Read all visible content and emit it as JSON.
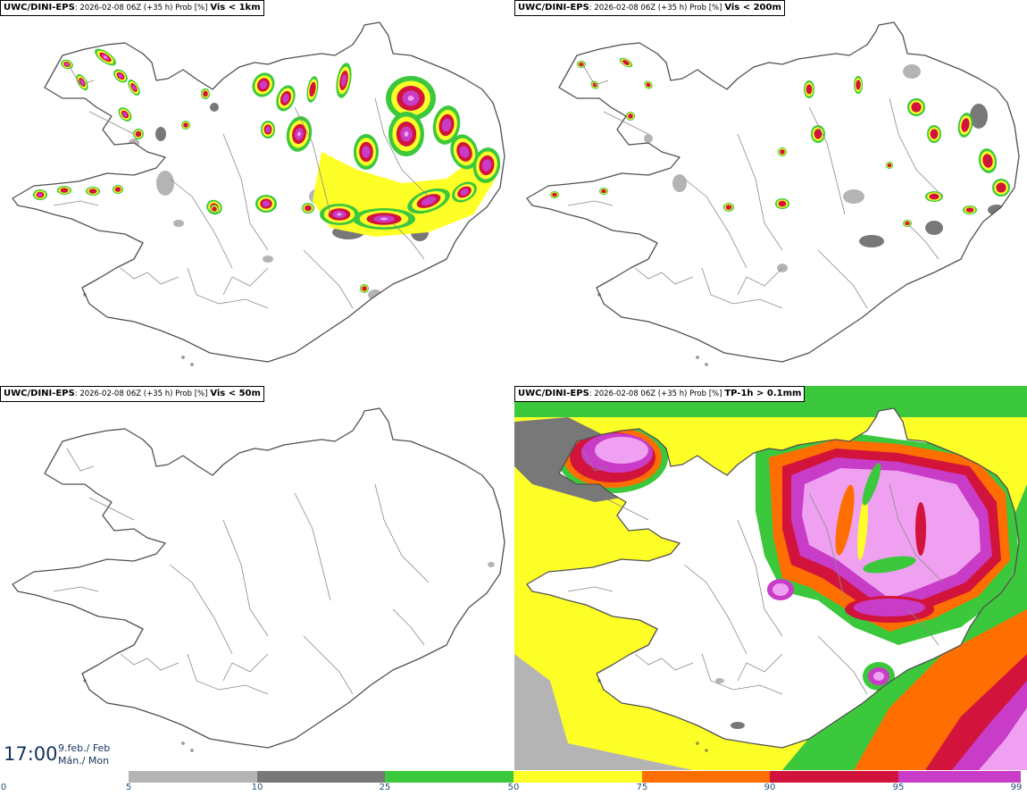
{
  "colors": {
    "light_gray": "#b4b4b4",
    "dark_gray": "#787878",
    "green": "#3cc83c",
    "yellow": "#ffff28",
    "orange": "#ff6e00",
    "red": "#d2143c",
    "magenta": "#c83cc8",
    "pink": "#f0a0f0",
    "coast": "#505050"
  },
  "panels": [
    {
      "model": "UWC/DINI-EPS",
      "meta": ": 2026-02-08 06Z (+35 h) Prob [%]",
      "var": "Vis < 1km",
      "intensity": "high"
    },
    {
      "model": "UWC/DINI-EPS",
      "meta": ": 2026-02-08 06Z (+35 h) Prob [%]",
      "var": "Vis < 200m",
      "intensity": "medium"
    },
    {
      "model": "UWC/DINI-EPS",
      "meta": ": 2026-02-08 06Z (+35 h) Prob [%]",
      "var": "Vis < 50m",
      "intensity": "none"
    },
    {
      "model": "UWC/DINI-EPS",
      "meta": ": 2026-02-08 06Z (+35 h) Prob [%]",
      "var": "TP-1h > 0.1mm",
      "intensity": "precip"
    }
  ],
  "valid_time": {
    "time": "17:00",
    "date": "9.feb./ Feb",
    "weekday": "Mán./ Mon"
  },
  "legend": {
    "ticks": [
      "0",
      "5",
      "10",
      "25",
      "50",
      "75",
      "90",
      "95",
      "99"
    ],
    "colors": [
      "#ffffff",
      "#b4b4b4",
      "#787878",
      "#3cc83c",
      "#ffff28",
      "#ff6e00",
      "#d2143c",
      "#c83cc8"
    ]
  }
}
